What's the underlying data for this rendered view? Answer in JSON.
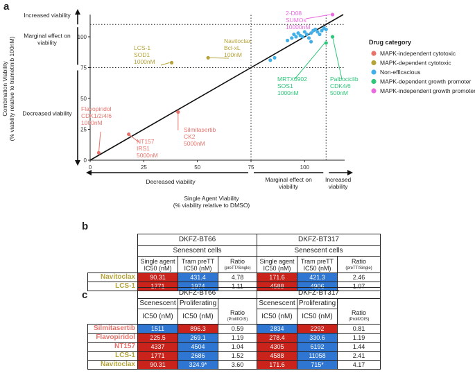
{
  "panels": {
    "a": "a",
    "b": "b",
    "c": "c"
  },
  "chart_data": {
    "type": "scatter",
    "xlabel": "Single Agent Viability",
    "xlabel2": "(% viability relative to DMSO)",
    "ylabel": "Combination Viability",
    "ylabel2": "(% viability relative to trametinib 100nM)",
    "xlim": [
      0,
      118
    ],
    "ylim": [
      0,
      118
    ],
    "xticks": [
      0,
      25,
      50,
      75,
      100
    ],
    "yticks": [
      0,
      25,
      50,
      75,
      100
    ],
    "thresholds": {
      "low": 75,
      "high": 110
    },
    "x_regions": {
      "decreased": "Decreased viability",
      "marginal1": "Marginal effect on",
      "marginal2": "viability",
      "increased1": "Increased",
      "increased2": "viability"
    },
    "y_regions": {
      "increased": "Increased viability",
      "marginal1": "Marginal effect on",
      "marginal2": "viability",
      "decreased": "Decreased viability"
    },
    "legend": {
      "title": "Drug category",
      "position": "right",
      "items": [
        {
          "label": "MAPK-independent cytotoxic",
          "color": "#e8736c"
        },
        {
          "label": "MAPK-dependent cytotoxic",
          "color": "#b5a33a"
        },
        {
          "label": "Non-efficacious",
          "color": "#45b0e8"
        },
        {
          "label": "MAPK-dependent growth promoter",
          "color": "#2ec67a"
        },
        {
          "label": "MAPK-independent growth promoter",
          "color": "#ea6ae0"
        }
      ]
    },
    "series": [
      {
        "category": 0,
        "points": [
          [
            4,
            6
          ],
          [
            18,
            21
          ],
          [
            41,
            39
          ]
        ]
      },
      {
        "category": 1,
        "points": [
          [
            38,
            79
          ],
          [
            55,
            83
          ]
        ]
      },
      {
        "category": 2,
        "points": [
          [
            84,
            81
          ],
          [
            86,
            83
          ],
          [
            92,
            97
          ],
          [
            94,
            99
          ],
          [
            95,
            102
          ],
          [
            96,
            100
          ],
          [
            97,
            103
          ],
          [
            98,
            101
          ],
          [
            99,
            100
          ],
          [
            100,
            104
          ],
          [
            101,
            102
          ],
          [
            102,
            99
          ],
          [
            103,
            103
          ],
          [
            104,
            105
          ],
          [
            105,
            106
          ],
          [
            106,
            104
          ],
          [
            107,
            102
          ],
          [
            108,
            105
          ],
          [
            109,
            107
          ],
          [
            110,
            106
          ],
          [
            103,
            96
          ]
        ]
      },
      {
        "category": 3,
        "points": [
          [
            110,
            95
          ],
          [
            113,
            100
          ]
        ]
      },
      {
        "category": 4,
        "points": [
          [
            113,
            118
          ]
        ]
      }
    ],
    "annotations": [
      {
        "lines": [
          "Flavopiridol",
          "CDK1/2/4/6",
          "1000nM"
        ],
        "color": "#e8736c"
      },
      {
        "lines": [
          "NT157",
          "IRS1",
          "5000nM"
        ],
        "color": "#e8736c"
      },
      {
        "lines": [
          "Silmitasertib",
          "CK2",
          "5000nM"
        ],
        "color": "#e8736c"
      },
      {
        "lines": [
          "LCS-1",
          "SOD1",
          "1000nM"
        ],
        "color": "#b5a33a"
      },
      {
        "lines": [
          "Navitoclax",
          "Bcl-xL",
          "100nM"
        ],
        "color": "#b5a33a"
      },
      {
        "lines": [
          "2-D08",
          "SUMOs",
          "10000nM"
        ],
        "color": "#ea6ae0"
      },
      {
        "lines": [
          "MRTX0902",
          "SOS1",
          "1000nM"
        ],
        "color": "#2ec67a"
      },
      {
        "lines": [
          "Palbociclib",
          "CDK4/6",
          "500nM"
        ],
        "color": "#2ec67a"
      }
    ]
  },
  "table_b": {
    "groups": [
      "DKFZ-BT66",
      "DKFZ-BT317"
    ],
    "subgroup": "Senescent cells",
    "col1a": "Single agent",
    "col1b": "IC50 (nM)",
    "col2a": "Tram preTT",
    "col2b": "IC50 (nM)",
    "col3a": "Ratio",
    "col3b": "(preTT/Single)",
    "rows": [
      {
        "name": "Navitoclax",
        "color": "#b5a33a",
        "v": [
          "90.31",
          "431.4",
          "4.78",
          "171.6",
          "421.3",
          "2.46"
        ]
      },
      {
        "name": "LCS-1",
        "color": "#b5a33a",
        "v": [
          "1771",
          "1974",
          "1.11",
          "4588",
          "4906",
          "1.07"
        ]
      }
    ]
  },
  "table_c": {
    "groups": [
      "DKFZ-BT66",
      "DKFZ-BT317"
    ],
    "sub1": "Scenescent",
    "sub2": "Proliferating",
    "ic50": "IC50 (nM)",
    "ratio_a": "Ratio",
    "ratio_b": "(Prolif/OIS)",
    "rows": [
      {
        "name": "Silmitasertib",
        "color": "#e8736c",
        "v": [
          "1511",
          "896.3",
          "0.59",
          "2834",
          "2292",
          "0.81"
        ]
      },
      {
        "name": "Flavopiridol",
        "color": "#e8736c",
        "v": [
          "225.5",
          "269.1",
          "1.19",
          "278.4",
          "330.6",
          "1.19"
        ]
      },
      {
        "name": "NT157",
        "color": "#e8736c",
        "v": [
          "4337",
          "4504",
          "1.04",
          "4305",
          "6192",
          "1.44"
        ]
      },
      {
        "name": "LCS-1",
        "color": "#b5a33a",
        "v": [
          "1771",
          "2686",
          "1.52",
          "4588",
          "11058",
          "2.41"
        ]
      },
      {
        "name": "Navitoclax",
        "color": "#b5a33a",
        "v": [
          "90.31",
          "324.9*",
          "3.60",
          "171.6",
          "715*",
          "4.17"
        ]
      }
    ]
  }
}
